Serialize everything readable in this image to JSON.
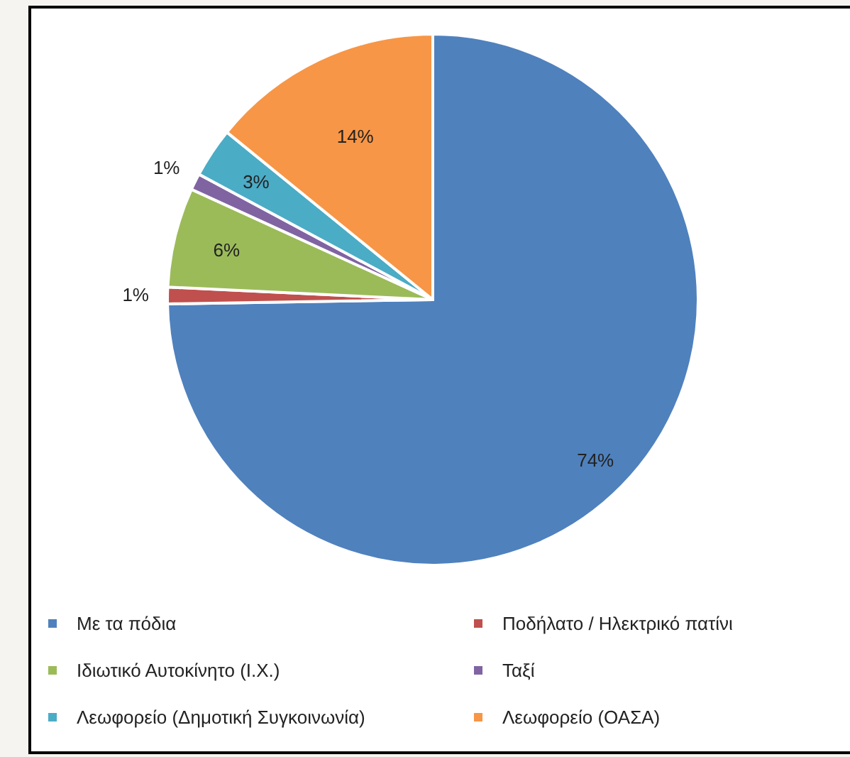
{
  "chart_data": {
    "type": "pie",
    "categories": [
      "Με τα πόδια",
      "Ποδήλατο / Ηλεκτρικό πατίνι",
      "Ιδιωτικό Αυτοκίνητο (Ι.Χ.)",
      "Ταξί",
      "Λεωφορείο (Δημοτική Συγκοινωνία)",
      "Λεωφορείο (ΟΑΣΑ)"
    ],
    "values": [
      74,
      1,
      6,
      1,
      3,
      14
    ],
    "colors": [
      "#4f81bd",
      "#c0504d",
      "#9bbb59",
      "#8064a2",
      "#4bacc6",
      "#f79646"
    ],
    "value_labels": [
      "74%",
      "1%",
      "6%",
      "1%",
      "3%",
      "14%"
    ],
    "legend": "bottom"
  }
}
